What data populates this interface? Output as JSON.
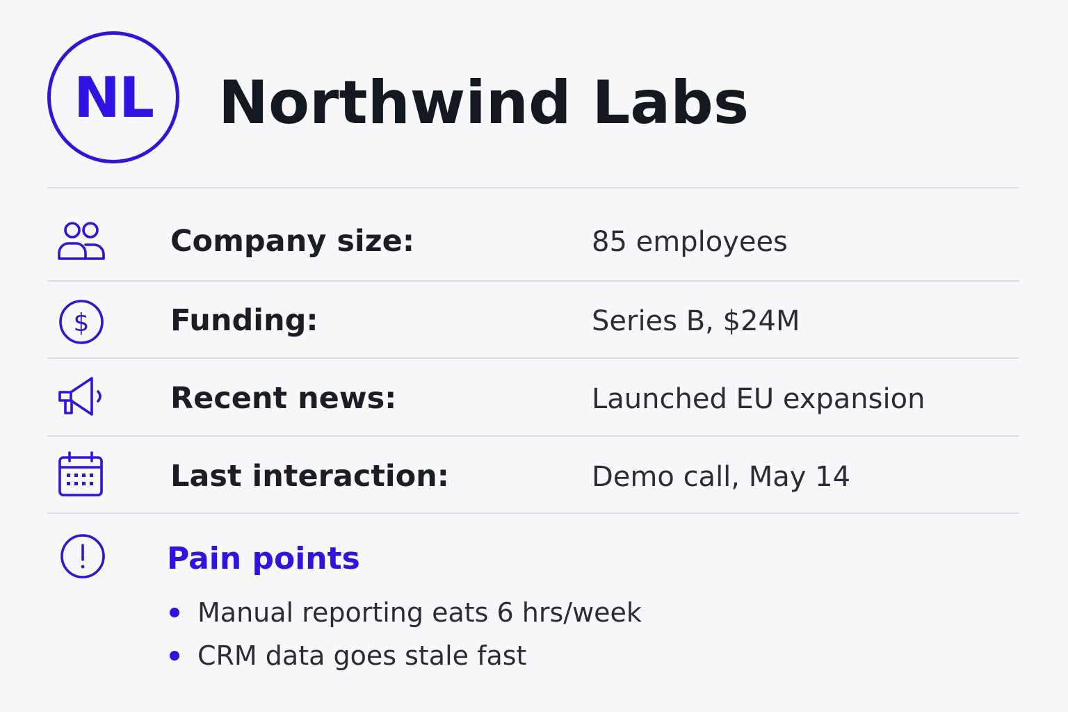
{
  "header": {
    "avatar_initials": "NL",
    "company_name": "Northwind Labs",
    "accent_color": "#2f12e6"
  },
  "details": [
    {
      "icon": "users-icon",
      "label": "Company size:",
      "value": "85 employees"
    },
    {
      "icon": "dollar-circle-icon",
      "label": "Funding:",
      "value": "Series B, $24M"
    },
    {
      "icon": "megaphone-icon",
      "label": "Recent news:",
      "value": "Launched EU expansion"
    },
    {
      "icon": "calendar-icon",
      "label": "Last interaction:",
      "value": "Demo call, May 14"
    }
  ],
  "pain_points": {
    "icon": "alert-circle-icon",
    "title": "Pain points",
    "items": [
      "Manual reporting eats 6 hrs/week",
      "CRM data goes stale fast"
    ]
  }
}
